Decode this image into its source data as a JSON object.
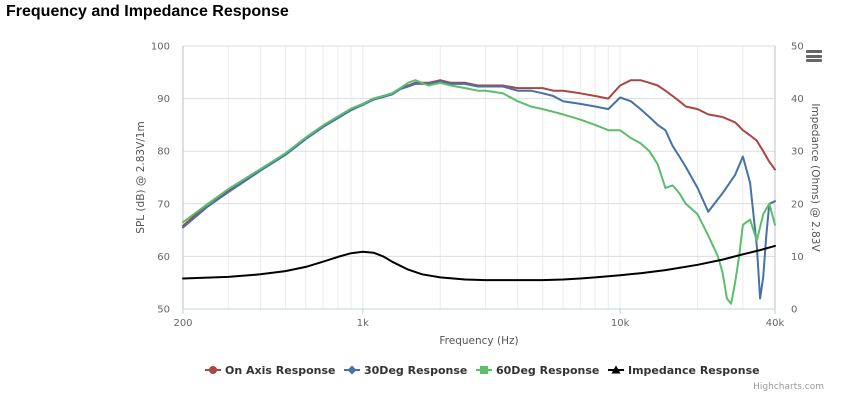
{
  "chart_data": {
    "type": "line",
    "title": "Frequency and Impedance Response",
    "xlabel": "Frequency (Hz)",
    "ylabel": "SPL (dB) @ 2.83V/1m",
    "y2label": "Impedance (Ohms) @ 2.83V",
    "x_scale": "log",
    "xlim": [
      200,
      40000
    ],
    "ylim": [
      50,
      100
    ],
    "y2lim": [
      0,
      50
    ],
    "x_ticks": [
      200,
      1000,
      10000,
      40000
    ],
    "x_tick_labels": [
      "200",
      "1k",
      "10k",
      "40k"
    ],
    "y_ticks": [
      50,
      60,
      70,
      80,
      90,
      100
    ],
    "y2_ticks": [
      0,
      10,
      20,
      30,
      40,
      50
    ],
    "grid": true,
    "legend_position": "bottom",
    "series": [
      {
        "name": "On Axis Response",
        "axis": "left",
        "color": "#aa4643",
        "x": [
          200,
          250,
          300,
          400,
          500,
          600,
          700,
          800,
          900,
          1000,
          1100,
          1200,
          1300,
          1400,
          1500,
          1600,
          1800,
          2000,
          2200,
          2500,
          2800,
          3000,
          3500,
          4000,
          4500,
          5000,
          5500,
          6000,
          7000,
          8000,
          9000,
          10000,
          11000,
          12000,
          13000,
          14000,
          15000,
          16000,
          17000,
          18000,
          20000,
          22000,
          25000,
          28000,
          30000,
          32000,
          34000,
          36000,
          38000,
          40000
        ],
        "y": [
          65.8,
          70,
          72.5,
          76.5,
          79.5,
          82.5,
          84.8,
          86.5,
          88,
          89,
          90,
          90.5,
          91,
          92,
          92.5,
          93,
          93,
          93.5,
          93,
          93,
          92.5,
          92.5,
          92.5,
          92,
          92,
          92,
          91.5,
          91.5,
          91,
          90.5,
          90,
          92.5,
          93.5,
          93.5,
          93,
          92.5,
          91.5,
          90.5,
          89.5,
          88.5,
          88,
          87,
          86.5,
          85.5,
          84,
          83,
          82,
          80,
          78,
          76.5
        ]
      },
      {
        "name": "30Deg Response",
        "axis": "left",
        "color": "#4572a7",
        "x": [
          200,
          250,
          300,
          400,
          500,
          600,
          700,
          800,
          900,
          1000,
          1100,
          1200,
          1300,
          1400,
          1500,
          1600,
          1800,
          2000,
          2200,
          2500,
          2800,
          3000,
          3500,
          4000,
          4500,
          5000,
          5500,
          6000,
          7000,
          8000,
          9000,
          10000,
          11000,
          12000,
          13000,
          14000,
          15000,
          16000,
          17000,
          18000,
          20000,
          22000,
          25000,
          28000,
          30000,
          32000,
          34000,
          35000,
          36000,
          37000,
          38000,
          40000
        ],
        "y": [
          65.5,
          69.5,
          72.2,
          76.3,
          79.3,
          82.3,
          84.6,
          86.3,
          87.8,
          88.8,
          89.8,
          90.3,
          90.8,
          91.8,
          92.3,
          92.8,
          92.8,
          93.3,
          92.8,
          92.8,
          92.3,
          92.3,
          92.3,
          91.5,
          91.5,
          91,
          90.5,
          89.5,
          89,
          88.5,
          88,
          90.2,
          89.5,
          88,
          86.5,
          85,
          84,
          81,
          79,
          77,
          73,
          68.5,
          72,
          75.5,
          79,
          74,
          62,
          52,
          56,
          64,
          70,
          70.5
        ]
      },
      {
        "name": "60Deg Response",
        "axis": "left",
        "color": "#5cbd6c",
        "x": [
          200,
          250,
          300,
          400,
          500,
          600,
          700,
          800,
          900,
          1000,
          1100,
          1200,
          1300,
          1400,
          1500,
          1600,
          1800,
          2000,
          2200,
          2500,
          2800,
          3000,
          3500,
          4000,
          4500,
          5000,
          5500,
          6000,
          7000,
          8000,
          9000,
          10000,
          11000,
          12000,
          13000,
          14000,
          15000,
          16000,
          17000,
          18000,
          20000,
          22000,
          24000,
          25000,
          26000,
          27000,
          28000,
          29000,
          30000,
          32000,
          34000,
          36000,
          38000,
          40000
        ],
        "y": [
          66.5,
          70,
          72.8,
          76.6,
          79.6,
          82.6,
          84.9,
          86.6,
          88.1,
          89,
          90,
          90.5,
          91,
          92,
          93,
          93.5,
          92.5,
          93,
          92.5,
          92,
          91.5,
          91.5,
          91,
          89.5,
          88.5,
          88,
          87.5,
          87,
          86,
          85,
          84,
          84,
          82.5,
          81.5,
          80,
          77.5,
          73,
          73.5,
          72,
          70,
          68,
          64,
          60,
          57,
          52,
          51,
          55,
          60,
          66,
          67,
          63,
          68,
          70,
          66
        ]
      },
      {
        "name": "Impedance Response",
        "axis": "right",
        "color": "#000000",
        "x": [
          200,
          300,
          400,
          500,
          600,
          700,
          800,
          900,
          1000,
          1100,
          1200,
          1300,
          1500,
          1700,
          2000,
          2500,
          3000,
          4000,
          5000,
          6000,
          7000,
          8000,
          10000,
          12000,
          15000,
          20000,
          25000,
          30000,
          35000,
          40000
        ],
        "y": [
          5.8,
          6.1,
          6.6,
          7.2,
          8,
          9,
          9.9,
          10.6,
          10.9,
          10.7,
          10,
          9,
          7.5,
          6.6,
          6,
          5.6,
          5.5,
          5.5,
          5.5,
          5.6,
          5.8,
          6,
          6.4,
          6.8,
          7.4,
          8.4,
          9.4,
          10.4,
          11.2,
          12
        ]
      }
    ]
  },
  "legend": {
    "items": [
      "On Axis Response",
      "30Deg Response",
      "60Deg Response",
      "Impedance Response"
    ]
  },
  "credits": "Highcharts.com",
  "menu_icon": "hamburger-menu-icon"
}
